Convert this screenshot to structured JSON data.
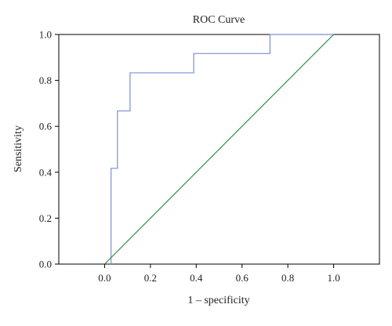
{
  "chart_data": {
    "type": "line",
    "title": "ROC Curve",
    "xlabel": "1 – specificity",
    "ylabel": "Sensitivity",
    "xlim": [
      -0.2,
      1.2
    ],
    "ylim": [
      0.0,
      1.0
    ],
    "xticks": [
      "0.0",
      "0.2",
      "0.4",
      "0.6",
      "0.8",
      "1.0"
    ],
    "xtick_values": [
      0.0,
      0.2,
      0.4,
      0.6,
      0.8,
      1.0
    ],
    "yticks": [
      "0.0",
      "0.2",
      "0.4",
      "0.6",
      "0.8",
      "1.0"
    ],
    "ytick_values": [
      0.0,
      0.2,
      0.4,
      0.6,
      0.8,
      1.0
    ],
    "grid": false,
    "legend": "none",
    "series": [
      {
        "color": "#7b8fd6",
        "style": "step",
        "x": [
          0.028,
          0.028,
          0.028,
          0.056,
          0.056,
          0.111,
          0.111,
          0.389,
          0.389,
          0.722,
          0.722,
          1.0
        ],
        "y": [
          0.0,
          0.0,
          0.417,
          0.417,
          0.667,
          0.667,
          0.833,
          0.833,
          0.917,
          0.917,
          1.0,
          1.0
        ]
      },
      {
        "color": "#2e8b3a",
        "style": "line",
        "x": [
          0.0,
          1.0
        ],
        "y": [
          0.0,
          1.0
        ]
      }
    ]
  }
}
